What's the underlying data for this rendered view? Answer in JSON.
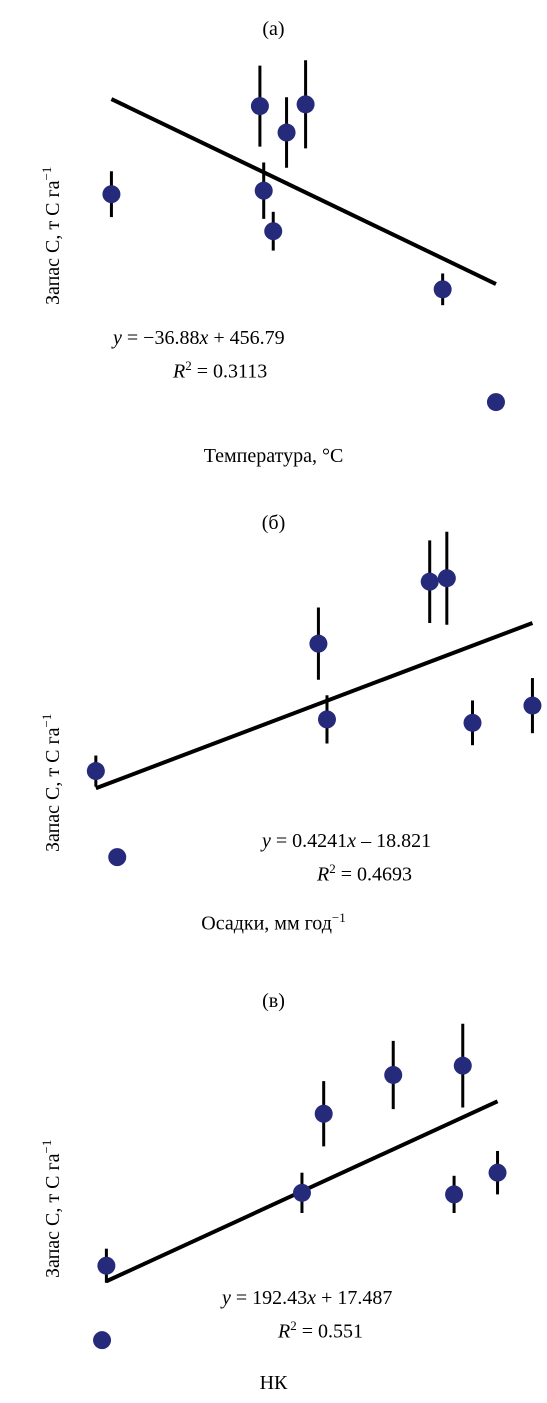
{
  "chart_data": [
    {
      "type": "scatter",
      "title": "(а)",
      "xlabel": "Температура, °C",
      "ylabel": "Запас C, т C га",
      "ylabel_sup": "−1",
      "equation": {
        "y": "y",
        "rhs": " = −36.88",
        "x": "x",
        "tail": " + 456.79"
      },
      "r2": {
        "R": "R",
        "exp": "2",
        "value": " = 0.3113"
      },
      "points": [
        {
          "x": 0.0,
          "y": 4.55,
          "err": 0.65
        },
        {
          "x": 3.9,
          "y": 7.05,
          "err": 1.15
        },
        {
          "x": 4.0,
          "y": 4.65,
          "err": 0.8
        },
        {
          "x": 4.25,
          "y": 3.5,
          "err": 0.55
        },
        {
          "x": 4.6,
          "y": 6.3,
          "err": 1.0
        },
        {
          "x": 5.1,
          "y": 7.1,
          "err": 1.25
        },
        {
          "x": 8.7,
          "y": 1.85,
          "err": 0.45
        },
        {
          "x": 10.1,
          "y": -1.35,
          "err": 0
        }
      ],
      "trendline": {
        "x": [
          0.0,
          10.1
        ],
        "y": [
          7.25,
          2.0
        ]
      },
      "xlim": [
        -0.3,
        10.6
      ],
      "ylim": [
        -2.0,
        8.5
      ]
    },
    {
      "type": "scatter",
      "title": "(б)",
      "xlabel": "Осадки, мм год",
      "xlabel_sup": "−1",
      "ylabel": "Запас C, т C га",
      "ylabel_sup": "−1",
      "equation": {
        "y": "y",
        "rhs": " = 0.4241",
        "x": "x",
        "tail": " – 18.821"
      },
      "r2": {
        "R": "R",
        "exp": "2",
        "value": " = 0.4693"
      },
      "points": [
        {
          "x": 420,
          "y": 3.6,
          "err": 0.45
        },
        {
          "x": 425,
          "y": 1.1,
          "err": 0
        },
        {
          "x": 472,
          "y": 7.3,
          "err": 1.05
        },
        {
          "x": 474,
          "y": 5.1,
          "err": 0.7
        },
        {
          "x": 498,
          "y": 9.1,
          "err": 1.2
        },
        {
          "x": 502,
          "y": 9.2,
          "err": 1.35
        },
        {
          "x": 508,
          "y": 5.0,
          "err": 0.65
        },
        {
          "x": 522,
          "y": 5.5,
          "err": 0.8
        }
      ],
      "trendline": {
        "x": [
          420,
          522
        ],
        "y": [
          3.1,
          7.9
        ]
      },
      "xlim": [
        417,
        524
      ],
      "ylim": [
        0.0,
        10.6
      ]
    },
    {
      "type": "scatter",
      "title": "(в)",
      "xlabel": "НК",
      "ylabel": "Запас C, т C га",
      "ylabel_sup": "−1",
      "equation": {
        "y": "y",
        "rhs": " = 192.43",
        "x": "x",
        "tail": " + 17.487"
      },
      "r2": {
        "R": "R",
        "exp": "2",
        "value": " = 0.551"
      },
      "points": [
        {
          "x": 0.0,
          "y": 2.0,
          "err": 0.55
        },
        {
          "x": -0.001,
          "y": -0.4,
          "err": 0
        },
        {
          "x": 0.045,
          "y": 4.35,
          "err": 0.65
        },
        {
          "x": 0.05,
          "y": 6.9,
          "err": 1.05
        },
        {
          "x": 0.066,
          "y": 8.15,
          "err": 1.1
        },
        {
          "x": 0.08,
          "y": 4.3,
          "err": 0.6
        },
        {
          "x": 0.082,
          "y": 8.45,
          "err": 1.35
        },
        {
          "x": 0.09,
          "y": 5.0,
          "err": 0.7
        }
      ],
      "trendline": {
        "x": [
          0.0,
          0.09
        ],
        "y": [
          1.5,
          7.3
        ]
      },
      "xlim": [
        -0.004,
        0.1
      ],
      "ylim": [
        -1.2,
        9.6
      ]
    }
  ],
  "style": {
    "point_color": "#252a7a",
    "line_color": "#000000"
  }
}
